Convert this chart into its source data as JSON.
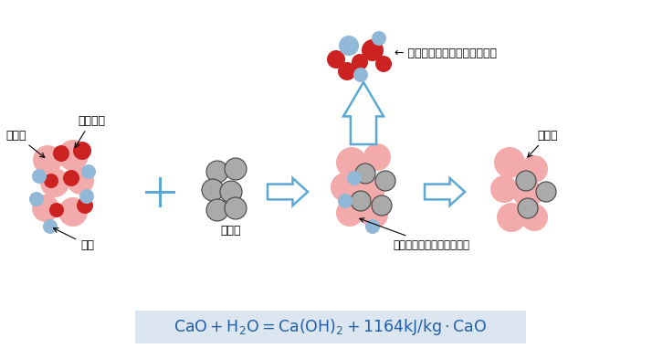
{
  "bg_color": "#ffffff",
  "formula_bg": "#dce6f1",
  "formula_color": "#1f5fa6",
  "arrow_color": "#5ba8d4",
  "label_color": "#000000",
  "group1_label_tsuchi": "土粒子",
  "group1_label_osen": "汚染物質",
  "group1_label_mizu": "水分",
  "group2_label": "生石灰",
  "group3_label": "生石灰と水分が反応し発熱",
  "group4_label": "土粒子",
  "top_label": "← 汚染物質が水分とともに蔣発",
  "pink_color": "#f2aaaa",
  "red_color": "#cc2222",
  "blue_color": "#92b8d8",
  "gray_color": "#aaaaaa",
  "gray_edge": "#444444"
}
